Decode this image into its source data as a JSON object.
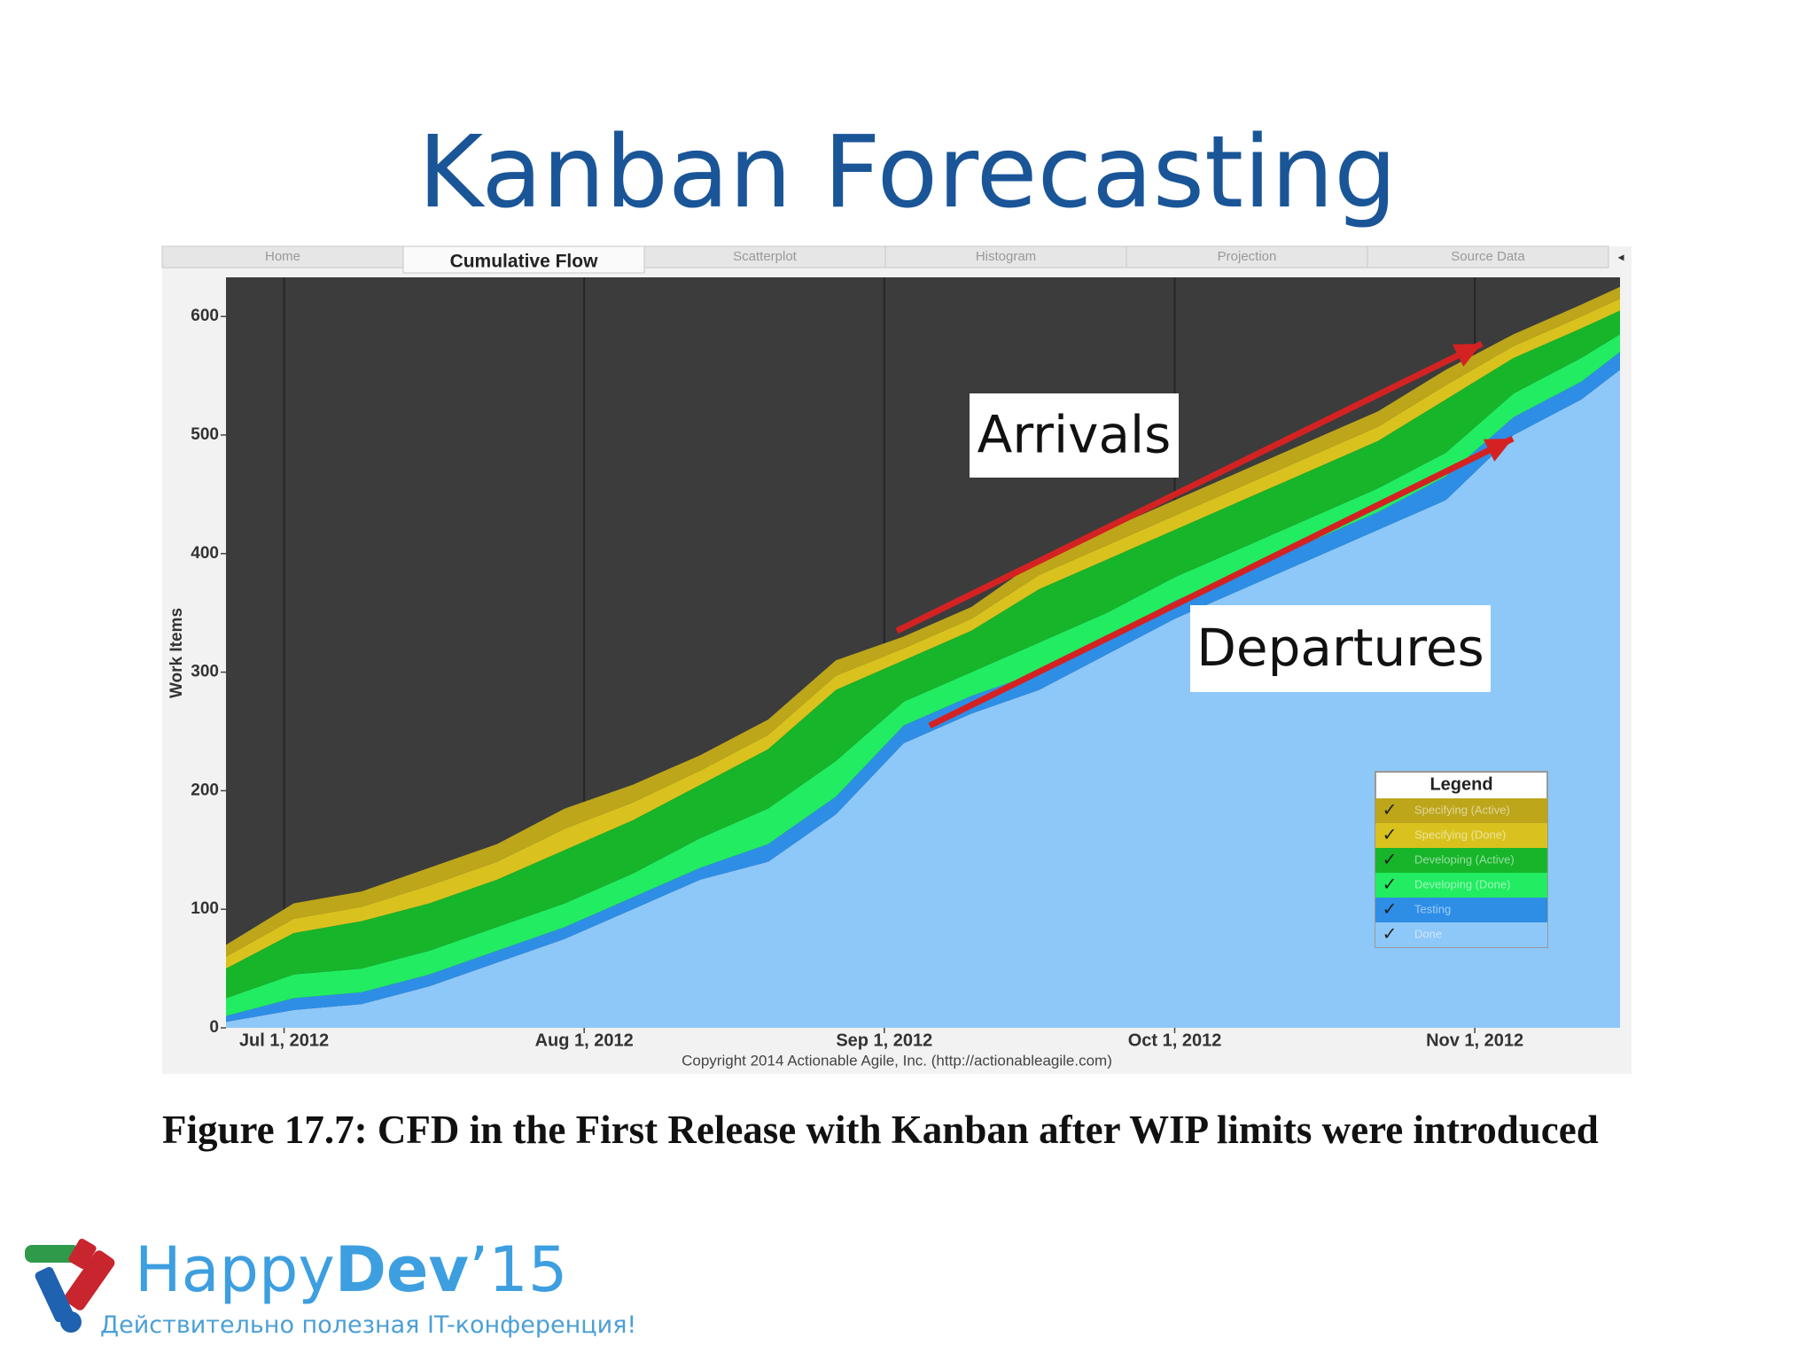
{
  "slide": {
    "title": "Kanban Forecasting",
    "caption": "Figure 17.7: CFD in the First Release with Kanban after WIP limits were introduced",
    "logo": {
      "happy": "Happy",
      "dev": "Dev",
      "year": "’15",
      "tagline": "Действительно полезная IT-конференция!"
    }
  },
  "tabs": [
    "Home",
    "Cumulative Flow",
    "Scatterplot",
    "Histogram",
    "Projection",
    "Source Data"
  ],
  "chart_data": {
    "type": "stacked_area",
    "y_label": "Work Items",
    "source": "Copyright 2014 Actionable Agile, Inc. (http://actionableagile.com)",
    "legend_title": "Legend",
    "legend": "lower right",
    "grid": "x",
    "annotations": [
      "Arrivals",
      "Departures"
    ],
    "x": [
      "2012-06-25",
      "2012-07-02",
      "2012-07-09",
      "2012-07-16",
      "2012-07-23",
      "2012-07-30",
      "2012-08-06",
      "2012-08-13",
      "2012-08-20",
      "2012-08-27",
      "2012-09-03",
      "2012-09-10",
      "2012-09-17",
      "2012-09-24",
      "2012-10-01",
      "2012-10-08",
      "2012-10-15",
      "2012-10-22",
      "2012-10-29",
      "2012-11-05",
      "2012-11-12",
      "2012-11-16"
    ],
    "xlim": [
      "2012-06-25",
      "2012-11-16"
    ],
    "xticks": [
      {
        "value": "2012-07-01",
        "label": "Jul 1, 2012"
      },
      {
        "value": "2012-08-01",
        "label": "Aug 1, 2012"
      },
      {
        "value": "2012-09-01",
        "label": "Sep 1, 2012"
      },
      {
        "value": "2012-10-01",
        "label": "Oct 1, 2012"
      },
      {
        "value": "2012-11-01",
        "label": "Nov 1, 2012"
      }
    ],
    "ylim": [
      0,
      633
    ],
    "yticks": [
      0,
      100,
      200,
      300,
      400,
      500,
      600
    ],
    "series": [
      {
        "name": "Done",
        "color": "#8ec8f8",
        "values": [
          5,
          15,
          20,
          35,
          55,
          75,
          100,
          125,
          140,
          180,
          240,
          265,
          285,
          315,
          345,
          370,
          395,
          420,
          445,
          500,
          530,
          555
        ]
      },
      {
        "name": "Testing",
        "color": "#2e8ee6",
        "values": [
          5,
          10,
          10,
          10,
          10,
          10,
          10,
          10,
          15,
          15,
          15,
          15,
          15,
          15,
          15,
          15,
          15,
          15,
          20,
          15,
          15,
          15
        ]
      },
      {
        "name": "Developing (Done)",
        "color": "#22ec62",
        "values": [
          15,
          20,
          20,
          20,
          20,
          20,
          20,
          25,
          30,
          30,
          20,
          20,
          25,
          20,
          20,
          20,
          20,
          20,
          20,
          20,
          20,
          15
        ]
      },
      {
        "name": "Developing (Active)",
        "color": "#16b52a",
        "values": [
          25,
          35,
          40,
          40,
          40,
          45,
          45,
          45,
          50,
          60,
          35,
          35,
          45,
          45,
          40,
          40,
          40,
          40,
          45,
          30,
          25,
          20
        ]
      },
      {
        "name": "Specifying (Done)",
        "color": "#d9c21e",
        "values": [
          10,
          12,
          12,
          15,
          15,
          18,
          15,
          12,
          12,
          12,
          10,
          10,
          12,
          12,
          12,
          12,
          12,
          12,
          12,
          10,
          10,
          10
        ]
      },
      {
        "name": "Specifying (Active)",
        "color": "#bda61a",
        "values": [
          10,
          13,
          13,
          15,
          15,
          17,
          15,
          13,
          13,
          13,
          10,
          10,
          13,
          13,
          13,
          13,
          13,
          13,
          13,
          10,
          10,
          10
        ]
      }
    ]
  }
}
